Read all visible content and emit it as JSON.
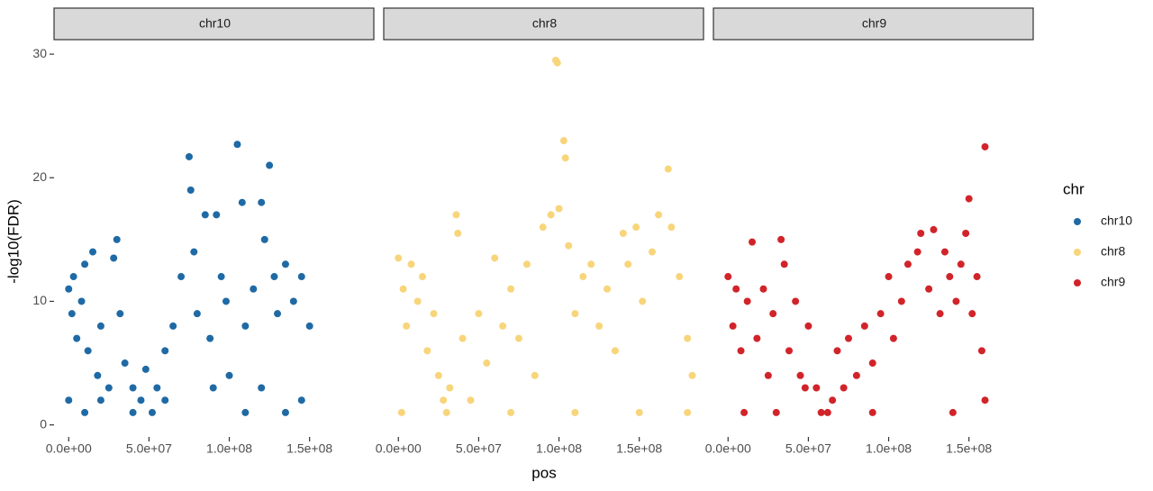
{
  "chart_data": {
    "type": "scatter",
    "xlabel": "pos",
    "ylabel": "-log10(FDR)",
    "legend_title": "chr",
    "xlim": [
      -8000000.0,
      190000000.0
    ],
    "xticks": [
      {
        "value": 0,
        "label": "0.0e+00"
      },
      {
        "value": 50000000.0,
        "label": "5.0e+07"
      },
      {
        "value": 100000000.0,
        "label": "1.0e+08"
      },
      {
        "value": 150000000.0,
        "label": "1.5e+08"
      }
    ],
    "ylim": [
      -0.9,
      31.1
    ],
    "yticks": [
      0,
      10,
      20,
      30
    ],
    "grid": false,
    "series": [
      {
        "name": "chr10",
        "color": "#1f6aa5",
        "x": [
          0,
          2000000.0,
          3000000.0,
          5000000.0,
          8000000.0,
          10000000.0,
          12000000.0,
          15000000.0,
          18000000.0,
          20000000.0,
          25000000.0,
          28000000.0,
          30000000.0,
          32000000.0,
          35000000.0,
          40000000.0,
          45000000.0,
          48000000.0,
          52000000.0,
          55000000.0,
          60000000.0,
          65000000.0,
          70000000.0,
          75000000.0,
          76000000.0,
          78000000.0,
          80000000.0,
          85000000.0,
          88000000.0,
          92000000.0,
          95000000.0,
          98000000.0,
          100000000.0,
          105000000.0,
          108000000.0,
          110000000.0,
          115000000.0,
          120000000.0,
          122000000.0,
          125000000.0,
          128000000.0,
          130000000.0,
          135000000.0,
          140000000.0,
          145000000.0,
          150000000.0,
          0,
          20000000.0,
          60000000.0,
          90000000.0,
          120000000.0,
          145000000.0,
          10000000.0,
          40000000.0,
          110000000.0,
          135000000.0
        ],
        "values": [
          11,
          9,
          12,
          7,
          10,
          13,
          6,
          14,
          4,
          8,
          3,
          13.5,
          15,
          9,
          5,
          3,
          2,
          4.5,
          1,
          3,
          6,
          8,
          12,
          21.7,
          19,
          14,
          9,
          17,
          7,
          17,
          12,
          10,
          4,
          22.7,
          18,
          8,
          11,
          18,
          15,
          21,
          12,
          9,
          13,
          10,
          12,
          8,
          2,
          2,
          2,
          3,
          3,
          2,
          1,
          1,
          1,
          1
        ]
      },
      {
        "name": "chr8",
        "color": "#f8d57a",
        "x": [
          0,
          3000000.0,
          5000000.0,
          8000000.0,
          12000000.0,
          15000000.0,
          18000000.0,
          22000000.0,
          25000000.0,
          28000000.0,
          32000000.0,
          36000000.0,
          37000000.0,
          40000000.0,
          45000000.0,
          50000000.0,
          55000000.0,
          60000000.0,
          65000000.0,
          70000000.0,
          75000000.0,
          80000000.0,
          85000000.0,
          90000000.0,
          95000000.0,
          98000000.0,
          99000000.0,
          100000000.0,
          103000000.0,
          104000000.0,
          106000000.0,
          110000000.0,
          115000000.0,
          120000000.0,
          125000000.0,
          130000000.0,
          135000000.0,
          140000000.0,
          143000000.0,
          148000000.0,
          152000000.0,
          158000000.0,
          162000000.0,
          168000000.0,
          170000000.0,
          175000000.0,
          180000000.0,
          183000000.0,
          2000000.0,
          30000000.0,
          70000000.0,
          110000000.0,
          150000000.0,
          180000000.0
        ],
        "values": [
          13.5,
          11,
          8,
          13,
          10,
          12,
          6,
          9,
          4,
          2,
          3,
          17,
          15.5,
          7,
          2,
          9,
          5,
          13.5,
          8,
          11,
          7,
          13,
          4,
          16,
          17,
          29.5,
          29.3,
          17.5,
          23,
          21.6,
          14.5,
          9,
          12,
          13,
          8,
          11,
          6,
          15.5,
          13,
          16,
          10,
          14,
          17,
          20.7,
          16,
          12,
          7,
          4,
          1,
          1,
          1,
          1,
          1,
          1
        ]
      },
      {
        "name": "chr9",
        "color": "#d1242a",
        "x": [
          0,
          3000000.0,
          5000000.0,
          8000000.0,
          12000000.0,
          15000000.0,
          18000000.0,
          22000000.0,
          25000000.0,
          28000000.0,
          33000000.0,
          35000000.0,
          38000000.0,
          42000000.0,
          45000000.0,
          48000000.0,
          50000000.0,
          55000000.0,
          58000000.0,
          62000000.0,
          65000000.0,
          68000000.0,
          72000000.0,
          75000000.0,
          80000000.0,
          85000000.0,
          90000000.0,
          95000000.0,
          100000000.0,
          103000000.0,
          108000000.0,
          112000000.0,
          118000000.0,
          120000000.0,
          125000000.0,
          128000000.0,
          132000000.0,
          135000000.0,
          138000000.0,
          142000000.0,
          145000000.0,
          148000000.0,
          150000000.0,
          152000000.0,
          155000000.0,
          158000000.0,
          160000000.0,
          10000000.0,
          30000000.0,
          90000000.0,
          140000000.0,
          160000000.0
        ],
        "values": [
          12,
          8,
          11,
          6,
          10,
          14.8,
          7,
          11,
          4,
          9,
          15,
          13,
          6,
          10,
          4,
          3,
          8,
          3,
          1,
          1,
          2,
          6,
          3,
          7,
          4,
          8,
          5,
          9,
          12,
          7,
          10,
          13,
          14,
          15.5,
          11,
          15.8,
          9,
          14,
          12,
          10,
          13,
          15.5,
          18.3,
          9,
          12,
          6,
          22.5,
          1,
          1,
          1,
          1,
          2
        ]
      }
    ]
  }
}
